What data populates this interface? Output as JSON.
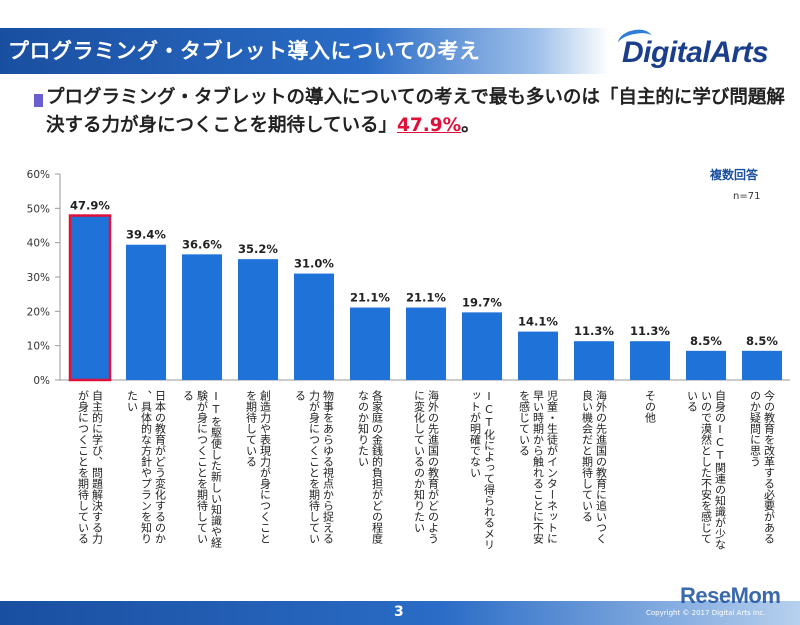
{
  "header": {
    "title": "プログラミング・タブレット導入についての考え",
    "logo": "DigitalArts"
  },
  "summary": {
    "text": "プログラミング・タブレットの導入についての考えで最も多いのは「自主的に学び問題解決する力が身につくことを期待している」",
    "highlight": "47.9%",
    "end": "。"
  },
  "notes": {
    "multi_answer": "複数回答",
    "n": "n=71"
  },
  "chart_data": {
    "type": "bar",
    "title": "",
    "xlabel": "",
    "ylabel": "",
    "ylim": [
      0,
      60
    ],
    "yticks": [
      "0%",
      "10%",
      "20%",
      "30%",
      "40%",
      "50%",
      "60%"
    ],
    "ytick_values": [
      0,
      10,
      20,
      30,
      40,
      50,
      60
    ],
    "bar_color": "#1f73d8",
    "highlight_color": "#e0103a",
    "highlight_index": 0,
    "categories": [
      "自主的に学び、問題解決する力が身につくことを期待している",
      "日本の教育がどう変化するのか、具体的な方針やプランを知りたい",
      "ITを駆使した新しい知識や経験が身につくことを期待している",
      "創造力や表現力が身につくことを期待している",
      "物事をあらゆる視点から捉える力が身につくことを期待している",
      "各家庭の金銭的負担がどの程度なのか知りたい",
      "海外の先進国の教育がどのように変化しているのか知りたい",
      "ICT化によって得られるメリットが明確でない",
      "児童・生徒がインターネットに早い時期から触れることに不安を感じている",
      "海外の先進国の教育に追いつく良い機会だと期待している",
      "その他",
      "自身のICT関連の知識が少ないので漠然とした不安を感じている",
      "今の教育を改革する必要があるのか疑問に思う"
    ],
    "values": [
      47.9,
      39.4,
      36.6,
      35.2,
      31.0,
      21.1,
      21.1,
      19.7,
      14.1,
      11.3,
      11.3,
      8.5,
      8.5
    ],
    "labels": [
      "47.9%",
      "39.4%",
      "36.6%",
      "35.2%",
      "31.0%",
      "21.1%",
      "21.1%",
      "19.7%",
      "14.1%",
      "11.3%",
      "11.3%",
      "8.5%",
      "8.5%"
    ]
  },
  "footer": {
    "page": "3",
    "copyright": "Copyright © 2017 Digital Arts Inc.",
    "watermark": "ReseMom"
  }
}
